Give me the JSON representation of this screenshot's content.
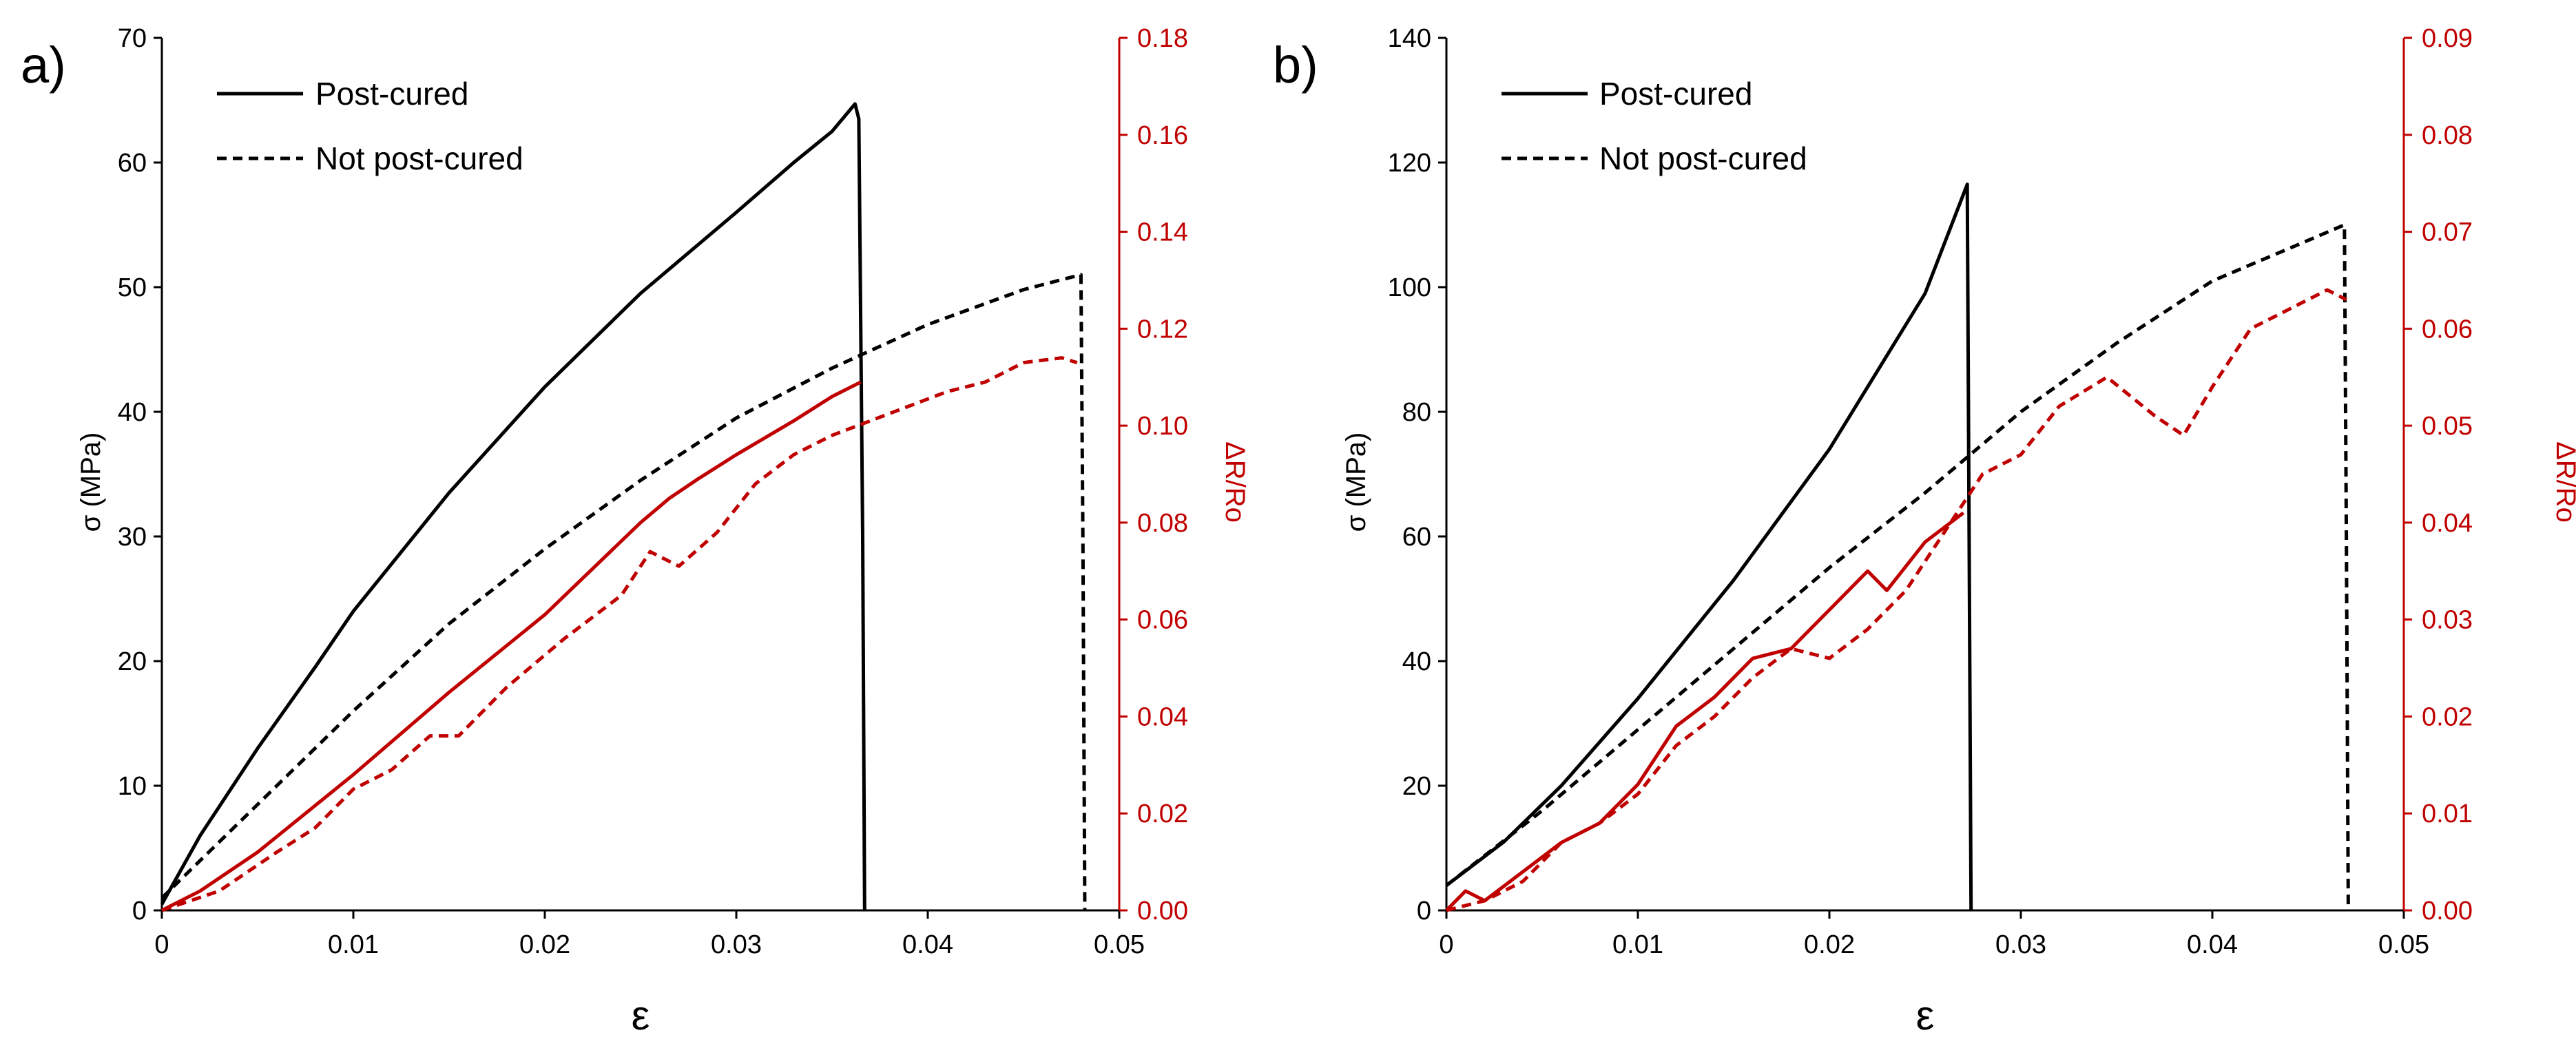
{
  "chart_data": [
    {
      "type": "line",
      "panel_label": "a)",
      "xlabel": "ε",
      "ylabel": "σ (MPa)",
      "y2label": "ΔR/Ro",
      "xlim": [
        0,
        0.05
      ],
      "ylim": [
        0,
        70
      ],
      "y2lim": [
        0,
        0.18
      ],
      "xticks": [
        "0",
        "0.01",
        "0.02",
        "0.03",
        "0.04",
        "0.05"
      ],
      "yticks": [
        "0",
        "10",
        "20",
        "30",
        "40",
        "50",
        "60",
        "70"
      ],
      "y2ticks": [
        "0.00",
        "0.02",
        "0.04",
        "0.06",
        "0.08",
        "0.10",
        "0.12",
        "0.14",
        "0.16",
        "0.18"
      ],
      "legend": {
        "placement": "top-left",
        "entries": [
          "Post-cured",
          "Not post-cured"
        ]
      },
      "colors": {
        "stress": "#000000",
        "resistance": "#c00000"
      },
      "series": [
        {
          "name": "Post-cured",
          "quantity": "stress",
          "axis": "left",
          "style": "solid",
          "x": [
            0,
            0.002,
            0.005,
            0.008,
            0.01,
            0.015,
            0.02,
            0.025,
            0.03,
            0.033,
            0.035,
            0.0362,
            0.0364,
            0.0366,
            0.0367
          ],
          "y": [
            0.5,
            6,
            13,
            19.5,
            24,
            33.5,
            42,
            49.5,
            56,
            60,
            62.5,
            64.7,
            63.5,
            30,
            0
          ]
        },
        {
          "name": "Not post-cured",
          "quantity": "stress",
          "axis": "left",
          "style": "dashed",
          "x": [
            0,
            0.005,
            0.01,
            0.015,
            0.02,
            0.025,
            0.03,
            0.035,
            0.04,
            0.045,
            0.048,
            0.0481,
            0.0482
          ],
          "y": [
            1,
            8.5,
            16,
            23,
            29,
            34.5,
            39.5,
            43.5,
            47,
            49.8,
            51,
            30,
            0
          ]
        },
        {
          "name": "Post-cured",
          "quantity": "resistance",
          "axis": "right",
          "style": "solid",
          "x": [
            0,
            0.002,
            0.005,
            0.01,
            0.015,
            0.02,
            0.025,
            0.0265,
            0.028,
            0.03,
            0.033,
            0.035,
            0.0365
          ],
          "y": [
            0,
            0.004,
            0.012,
            0.028,
            0.045,
            0.061,
            0.08,
            0.085,
            0.089,
            0.094,
            0.101,
            0.106,
            0.109
          ]
        },
        {
          "name": "Not post-cured",
          "quantity": "resistance",
          "axis": "right",
          "style": "dashed",
          "x": [
            0,
            0.003,
            0.006,
            0.008,
            0.01,
            0.012,
            0.014,
            0.0155,
            0.018,
            0.021,
            0.024,
            0.0255,
            0.027,
            0.029,
            0.031,
            0.033,
            0.035,
            0.037,
            0.039,
            0.041,
            0.043,
            0.045,
            0.047,
            0.0478
          ],
          "y": [
            0,
            0.004,
            0.012,
            0.017,
            0.025,
            0.029,
            0.036,
            0.036,
            0.046,
            0.056,
            0.065,
            0.074,
            0.071,
            0.078,
            0.088,
            0.094,
            0.098,
            0.101,
            0.104,
            0.107,
            0.109,
            0.113,
            0.114,
            0.113
          ]
        }
      ]
    },
    {
      "type": "line",
      "panel_label": "b)",
      "xlabel": "ε",
      "ylabel": "σ (MPa)",
      "y2label": "ΔR/Ro",
      "xlim": [
        0,
        0.05
      ],
      "ylim": [
        0,
        140
      ],
      "y2lim": [
        0,
        0.09
      ],
      "xticks": [
        "0",
        "0.01",
        "0.02",
        "0.03",
        "0.04",
        "0.05"
      ],
      "yticks": [
        "0",
        "20",
        "40",
        "60",
        "80",
        "100",
        "120",
        "140"
      ],
      "y2ticks": [
        "0.00",
        "0.01",
        "0.02",
        "0.03",
        "0.04",
        "0.05",
        "0.06",
        "0.07",
        "0.08",
        "0.09"
      ],
      "legend": {
        "placement": "top-left",
        "entries": [
          "Post-cured",
          "Not post-cured"
        ]
      },
      "colors": {
        "stress": "#000000",
        "resistance": "#c00000"
      },
      "series": [
        {
          "name": "Post-cured",
          "quantity": "stress",
          "axis": "left",
          "style": "solid",
          "x": [
            0,
            0.003,
            0.006,
            0.01,
            0.015,
            0.02,
            0.025,
            0.0272,
            0.0273,
            0.0274
          ],
          "y": [
            4,
            11,
            20,
            34,
            53,
            74,
            99,
            116.5,
            60,
            0
          ]
        },
        {
          "name": "Not post-cured",
          "quantity": "stress",
          "axis": "left",
          "style": "dashed",
          "x": [
            0,
            0.005,
            0.01,
            0.015,
            0.02,
            0.025,
            0.03,
            0.035,
            0.04,
            0.045,
            0.0469,
            0.047,
            0.0471
          ],
          "y": [
            4,
            16,
            29,
            42,
            55,
            67,
            80,
            91,
            101,
            107.5,
            110,
            60,
            0
          ]
        },
        {
          "name": "Post-cured",
          "quantity": "resistance",
          "axis": "right",
          "style": "solid",
          "x": [
            0,
            0.001,
            0.002,
            0.004,
            0.006,
            0.008,
            0.01,
            0.012,
            0.014,
            0.016,
            0.018,
            0.02,
            0.022,
            0.023,
            0.025,
            0.027
          ],
          "y": [
            0,
            0.002,
            0.001,
            0.004,
            0.007,
            0.009,
            0.013,
            0.019,
            0.022,
            0.026,
            0.027,
            0.031,
            0.035,
            0.033,
            0.038,
            0.041
          ]
        },
        {
          "name": "Not post-cured",
          "quantity": "resistance",
          "axis": "right",
          "style": "dashed",
          "x": [
            0,
            0.002,
            0.004,
            0.006,
            0.008,
            0.01,
            0.012,
            0.014,
            0.016,
            0.018,
            0.02,
            0.022,
            0.024,
            0.026,
            0.028,
            0.03,
            0.032,
            0.0345,
            0.037,
            0.0385,
            0.04,
            0.042,
            0.044,
            0.046,
            0.047
          ],
          "y": [
            0,
            0.001,
            0.003,
            0.007,
            0.009,
            0.012,
            0.017,
            0.02,
            0.024,
            0.027,
            0.026,
            0.029,
            0.033,
            0.039,
            0.045,
            0.047,
            0.052,
            0.055,
            0.051,
            0.049,
            0.054,
            0.06,
            0.062,
            0.064,
            0.063
          ]
        }
      ]
    }
  ]
}
